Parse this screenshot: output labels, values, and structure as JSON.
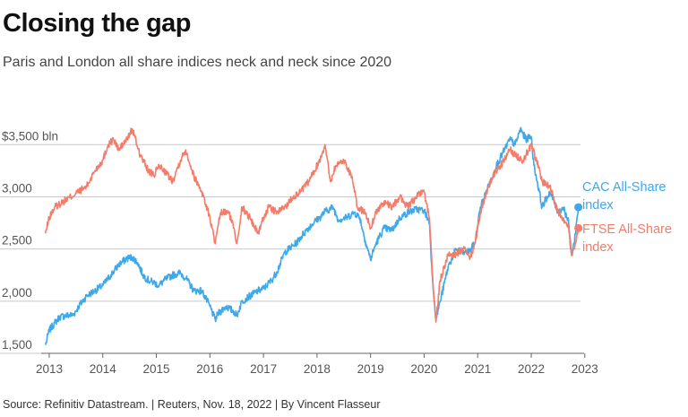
{
  "title": "Closing the gap",
  "subtitle": "Paris and London all share indices neck and neck since 2020",
  "source": "Source: Refinitiv Datastream. | Reuters, Nov. 18, 2022 | By Vincent Flasseur",
  "colors": {
    "cac": "#3ea8e8",
    "ftse": "#f47c6a",
    "grid": "#c9c9c9",
    "axis": "#666666"
  },
  "chart_data": {
    "type": "line",
    "title": "Closing the gap",
    "subtitle": "Paris and London all share indices neck and neck since 2020",
    "xlim": [
      2012.85,
      2022.92
    ],
    "ylim": [
      1500,
      3700
    ],
    "y_ticks": [
      {
        "value": 3500,
        "label": "$3,500 bln"
      },
      {
        "value": 3000,
        "label": "3,000"
      },
      {
        "value": 2500,
        "label": "2,500"
      },
      {
        "value": 2000,
        "label": "2,000"
      },
      {
        "value": 1500,
        "label": "1,500"
      }
    ],
    "x_ticks": [
      {
        "value": 2013,
        "label": "2013"
      },
      {
        "value": 2014,
        "label": "2014"
      },
      {
        "value": 2015,
        "label": "2015"
      },
      {
        "value": 2016,
        "label": "2016"
      },
      {
        "value": 2017,
        "label": "2017"
      },
      {
        "value": 2018,
        "label": "2018"
      },
      {
        "value": 2019,
        "label": "2019"
      },
      {
        "value": 2020,
        "label": "2020"
      },
      {
        "value": 2021,
        "label": "2021"
      },
      {
        "value": 2022,
        "label": "2022"
      },
      {
        "value": 2023,
        "label": "2023"
      }
    ],
    "grid": true,
    "legend": "end-of-line labels, right",
    "series": [
      {
        "name": "CAC All-Share index",
        "color": "#3ea8e8",
        "x": [
          2012.93,
          2013.0,
          2013.1,
          2013.2,
          2013.3,
          2013.45,
          2013.55,
          2013.7,
          2013.85,
          2014.0,
          2014.15,
          2014.3,
          2014.45,
          2014.55,
          2014.65,
          2014.75,
          2014.85,
          2014.95,
          2015.05,
          2015.15,
          2015.3,
          2015.45,
          2015.55,
          2015.7,
          2015.85,
          2016.0,
          2016.1,
          2016.15,
          2016.3,
          2016.45,
          2016.5,
          2016.6,
          2016.75,
          2016.9,
          2017.0,
          2017.15,
          2017.25,
          2017.4,
          2017.6,
          2017.8,
          2017.95,
          2018.05,
          2018.15,
          2018.3,
          2018.4,
          2018.55,
          2018.7,
          2018.8,
          2018.9,
          2019.0,
          2019.1,
          2019.25,
          2019.4,
          2019.55,
          2019.7,
          2019.85,
          2020.0,
          2020.1,
          2020.15,
          2020.22,
          2020.3,
          2020.45,
          2020.6,
          2020.75,
          2020.85,
          2020.95,
          2021.05,
          2021.2,
          2021.35,
          2021.5,
          2021.6,
          2021.7,
          2021.8,
          2021.9,
          2022.0,
          2022.05,
          2022.15,
          2022.2,
          2022.35,
          2022.5,
          2022.6,
          2022.7,
          2022.75,
          2022.8,
          2022.88
        ],
        "values": [
          1580,
          1720,
          1790,
          1850,
          1860,
          1870,
          1950,
          2050,
          2100,
          2150,
          2250,
          2350,
          2410,
          2420,
          2370,
          2250,
          2200,
          2180,
          2150,
          2200,
          2250,
          2270,
          2220,
          2100,
          2100,
          1950,
          1820,
          1880,
          1950,
          1900,
          1860,
          2000,
          2050,
          2100,
          2120,
          2200,
          2280,
          2470,
          2550,
          2680,
          2760,
          2800,
          2860,
          2900,
          2780,
          2800,
          2850,
          2800,
          2580,
          2400,
          2550,
          2700,
          2680,
          2800,
          2850,
          2880,
          2870,
          2750,
          2250,
          1830,
          2000,
          2330,
          2500,
          2460,
          2480,
          2560,
          2900,
          3100,
          3300,
          3450,
          3550,
          3500,
          3650,
          3550,
          3580,
          3300,
          3050,
          2900,
          3050,
          2850,
          2900,
          2750,
          2450,
          2550,
          2900
        ]
      },
      {
        "name": "FTSE All-Share index",
        "color": "#f47c6a",
        "x": [
          2012.93,
          2013.0,
          2013.1,
          2013.25,
          2013.4,
          2013.55,
          2013.7,
          2013.85,
          2014.0,
          2014.1,
          2014.2,
          2014.3,
          2014.45,
          2014.55,
          2014.7,
          2014.85,
          2014.95,
          2015.05,
          2015.15,
          2015.3,
          2015.45,
          2015.55,
          2015.7,
          2015.85,
          2016.0,
          2016.1,
          2016.2,
          2016.35,
          2016.45,
          2016.5,
          2016.6,
          2016.75,
          2016.9,
          2017.0,
          2017.1,
          2017.25,
          2017.4,
          2017.55,
          2017.7,
          2017.85,
          2017.95,
          2018.05,
          2018.15,
          2018.25,
          2018.35,
          2018.5,
          2018.65,
          2018.75,
          2018.9,
          2019.0,
          2019.1,
          2019.25,
          2019.4,
          2019.55,
          2019.7,
          2019.85,
          2020.0,
          2020.1,
          2020.15,
          2020.22,
          2020.3,
          2020.45,
          2020.6,
          2020.75,
          2020.85,
          2020.95,
          2021.05,
          2021.2,
          2021.35,
          2021.5,
          2021.6,
          2021.7,
          2021.85,
          2022.0,
          2022.1,
          2022.2,
          2022.35,
          2022.5,
          2022.6,
          2022.7,
          2022.75,
          2022.8,
          2022.88
        ],
        "values": [
          2650,
          2800,
          2900,
          2950,
          3000,
          3050,
          3100,
          3250,
          3350,
          3500,
          3550,
          3450,
          3550,
          3650,
          3400,
          3250,
          3200,
          3300,
          3250,
          3150,
          3350,
          3450,
          3200,
          3050,
          2800,
          2550,
          2850,
          2850,
          2700,
          2550,
          2900,
          2800,
          2650,
          2800,
          2900,
          2850,
          2900,
          3000,
          3050,
          3150,
          3250,
          3350,
          3500,
          3150,
          3300,
          3350,
          3200,
          2900,
          2850,
          2700,
          2850,
          2950,
          2900,
          3000,
          2900,
          3000,
          3050,
          2800,
          2300,
          1800,
          2200,
          2450,
          2450,
          2500,
          2400,
          2550,
          2850,
          3100,
          3250,
          3350,
          3450,
          3400,
          3350,
          3500,
          3350,
          3150,
          3100,
          2850,
          2800,
          2700,
          2450,
          2500,
          2700
        ]
      }
    ],
    "labels": [
      {
        "series": "CAC All-Share index",
        "lines": [
          "CAC All-Share",
          "index"
        ]
      },
      {
        "series": "FTSE All-Share index",
        "lines": [
          "FTSE All-Share",
          "index"
        ]
      }
    ]
  }
}
